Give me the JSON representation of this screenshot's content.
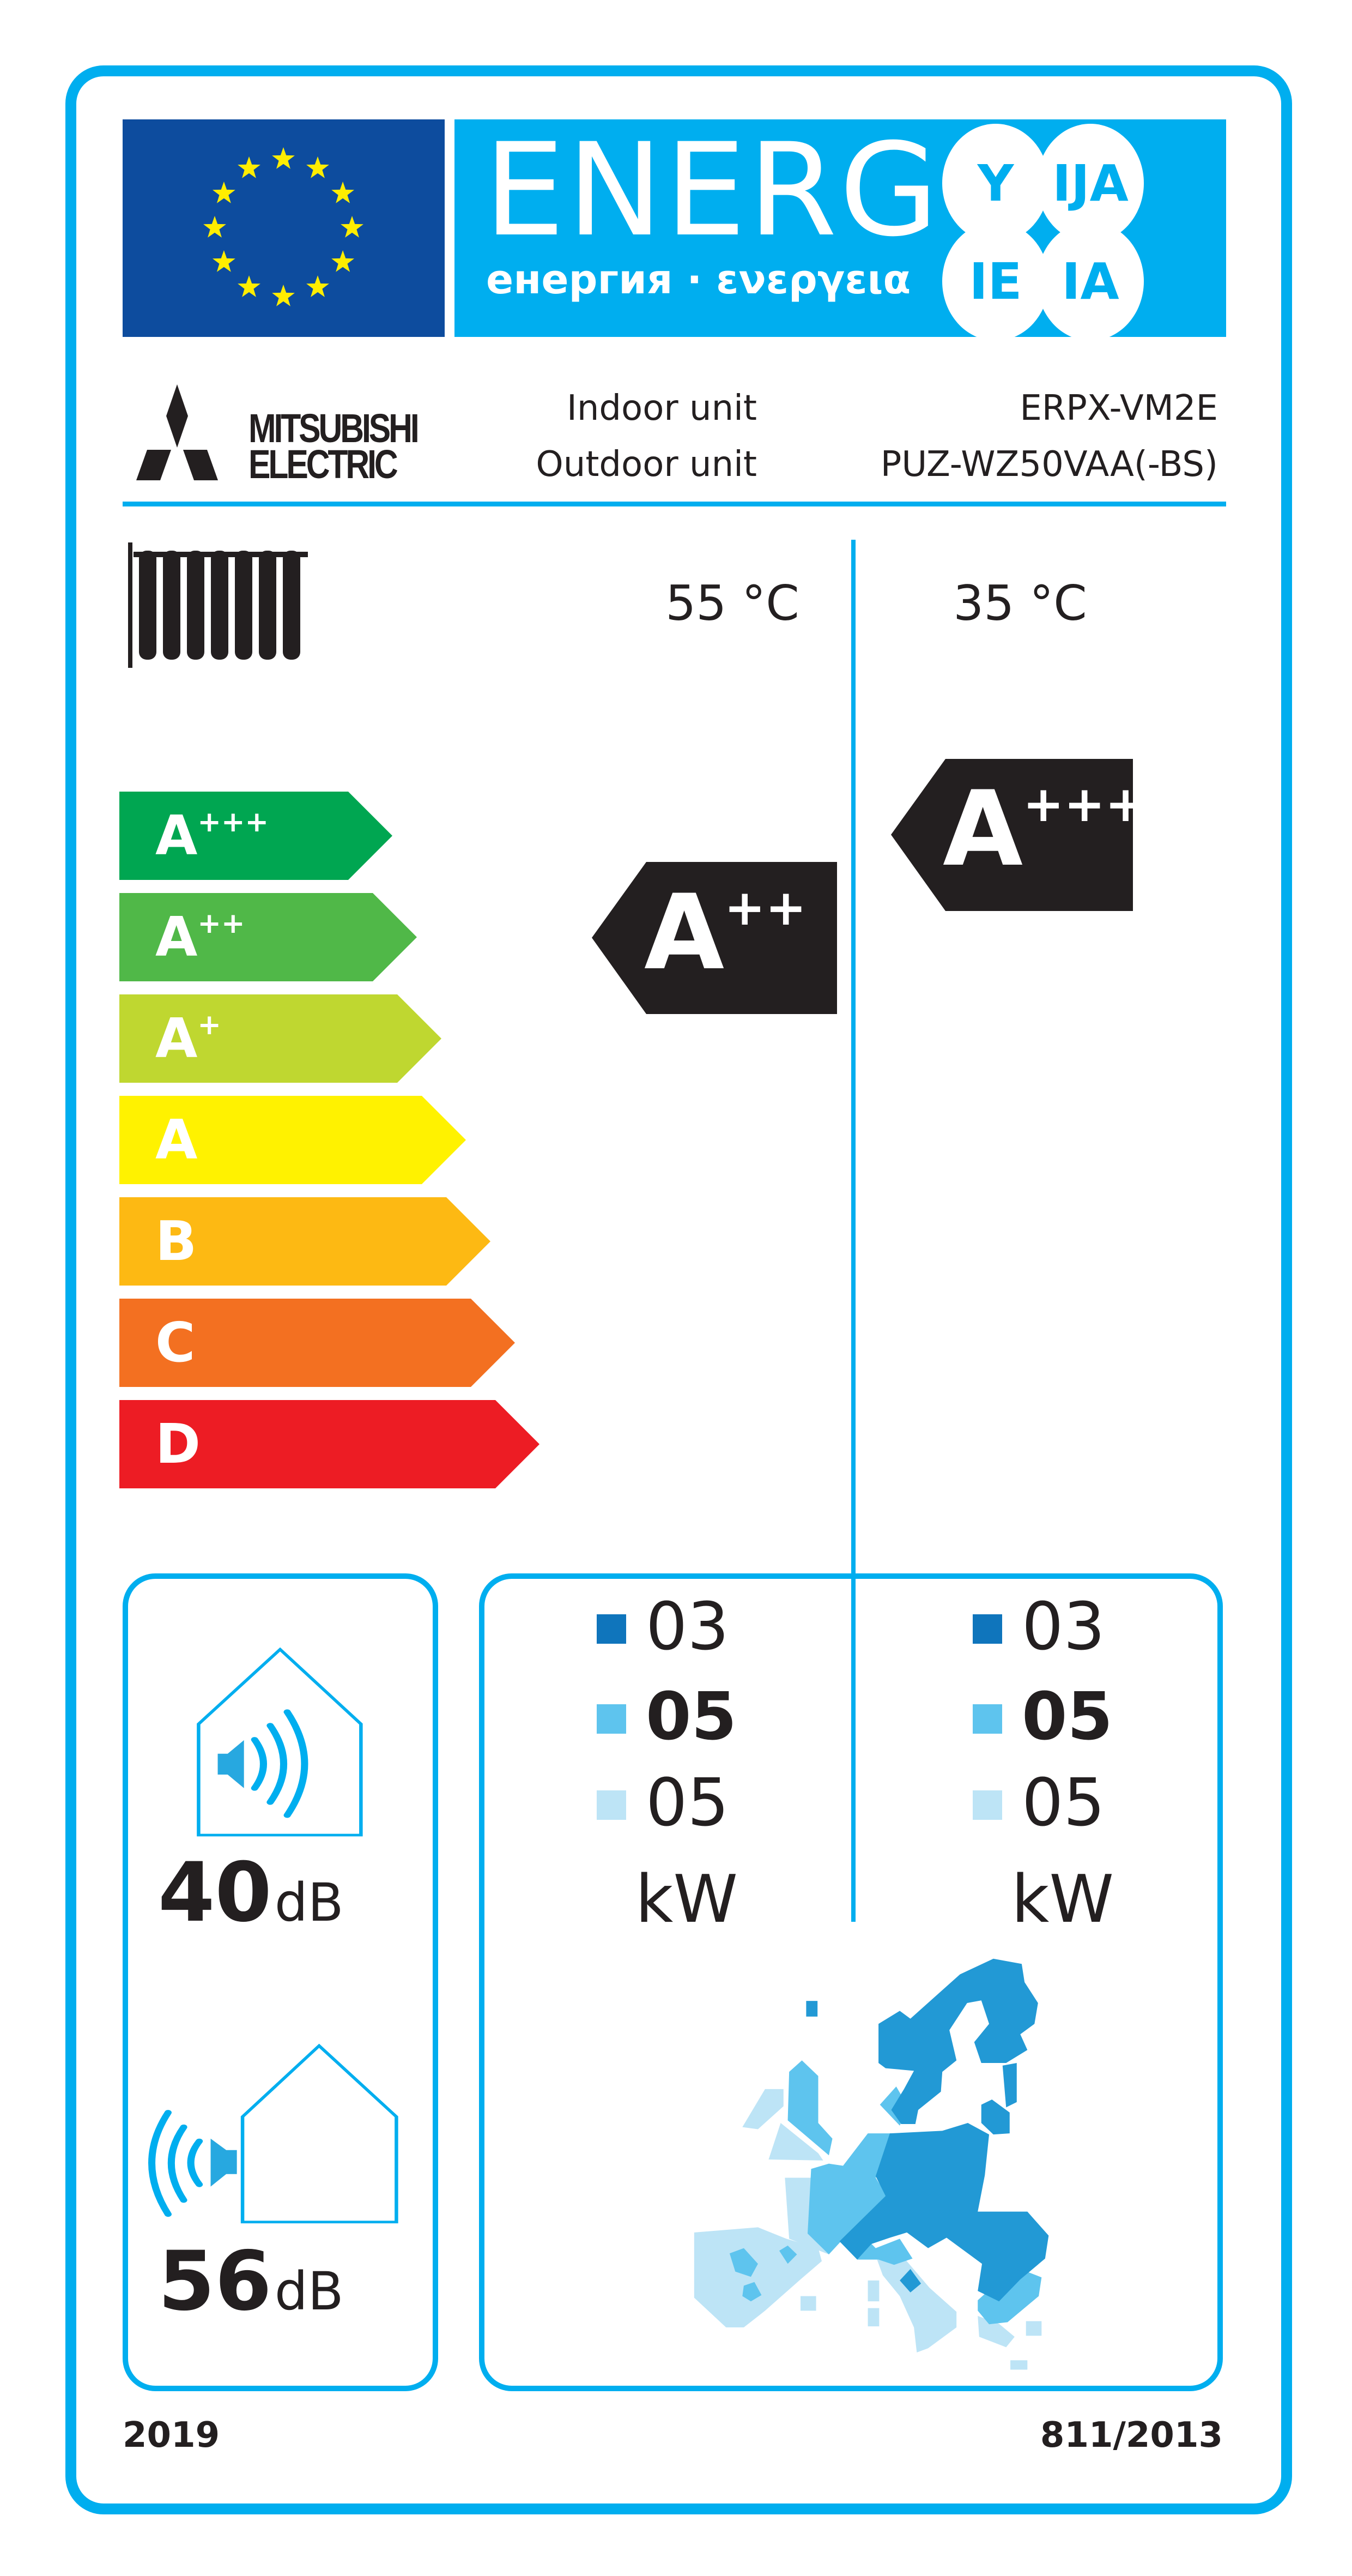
{
  "header": {
    "energy_word": "ENERG",
    "energy_subtitle": "енергия · ενεργεια",
    "language_suffixes": [
      "Y",
      "IJA",
      "IE",
      "IA"
    ],
    "flag_icon": "eu-flag-icon",
    "colors": {
      "label_blue": "#00aeef",
      "flag_blue": "#0d4c9e",
      "star_yellow": "#ffed00"
    }
  },
  "supplier": {
    "brand_line1": "MITSUBISHI",
    "brand_line2": "ELECTRIC",
    "indoor_label": "Indoor unit",
    "indoor_model": "ERPX-VM2E",
    "outdoor_label": "Outdoor unit",
    "outdoor_model": "PUZ-WZ50VAA(-BS)"
  },
  "application": {
    "icon": "radiator-icon",
    "temp_55": "55 °C",
    "temp_35": "35 °C"
  },
  "scale": [
    {
      "letter": "A",
      "sup": "+++",
      "color": "#00a651"
    },
    {
      "letter": "A",
      "sup": "++",
      "color": "#50b848"
    },
    {
      "letter": "A",
      "sup": "+",
      "color": "#bfd730"
    },
    {
      "letter": "A",
      "sup": "",
      "color": "#fff200"
    },
    {
      "letter": "B",
      "sup": "",
      "color": "#fdb913"
    },
    {
      "letter": "C",
      "sup": "",
      "color": "#f37021"
    },
    {
      "letter": "D",
      "sup": "",
      "color": "#ed1c24"
    }
  ],
  "ratings": {
    "temp_55": {
      "letter": "A",
      "sup": "++"
    },
    "temp_35": {
      "letter": "A",
      "sup": "+++"
    }
  },
  "sound": {
    "indoor_value": "40",
    "indoor_unit": "dB",
    "outdoor_value": "56",
    "outdoor_unit": "dB"
  },
  "heat_output": {
    "col_55": [
      "03",
      "05",
      "05"
    ],
    "col_35": [
      "03",
      "05",
      "05"
    ],
    "unit": "kW",
    "zone_colors": [
      "#0f75bc",
      "#5ec4ee",
      "#bde4f6"
    ]
  },
  "footer": {
    "year": "2019",
    "regulation": "811/2013"
  }
}
